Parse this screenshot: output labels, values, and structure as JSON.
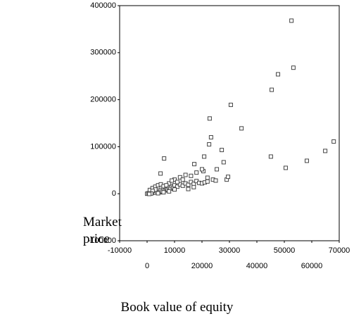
{
  "chart_data": {
    "type": "scatter",
    "x_label": "Book value of equity",
    "y_label": "Market price",
    "xlim": [
      -10000,
      70000
    ],
    "xticks": [
      -10000,
      0,
      10000,
      20000,
      30000,
      40000,
      50000,
      60000,
      70000
    ],
    "ylim": [
      -100000,
      400000
    ],
    "yticks": [
      -100000,
      0,
      100000,
      200000,
      300000,
      400000
    ],
    "color": "#444444",
    "x": [
      52600,
      53300,
      47700,
      45400,
      30500,
      34400,
      68000,
      64900,
      58200,
      45100,
      50500,
      22800,
      23300,
      22600,
      20800,
      27200,
      27900,
      25400,
      6200,
      4900,
      17200,
      20500,
      29000,
      29500,
      0,
      500,
      1000,
      1500,
      2000,
      2500,
      3000,
      3500,
      4000,
      4500,
      5000,
      5500,
      6000,
      6500,
      7000,
      7500,
      8000,
      8500,
      9000,
      9500,
      10000,
      11000,
      12000,
      13000,
      14000,
      15000,
      16000,
      17000,
      18000,
      19000,
      20000,
      21000,
      22000,
      1000,
      2000,
      3000,
      4000,
      5000,
      6000,
      8000,
      10000,
      12000,
      14000,
      16000,
      18000,
      20000,
      13000,
      11000,
      9000,
      7000,
      3000,
      2000,
      1500,
      800,
      4000,
      6000,
      8000,
      10000,
      22000,
      24000,
      25000,
      15000,
      17000
    ],
    "values": [
      368000,
      268000,
      254000,
      221000,
      189000,
      139000,
      111000,
      91000,
      70000,
      79000,
      55000,
      160000,
      120000,
      105000,
      79000,
      93000,
      67000,
      52000,
      75000,
      43000,
      63000,
      48000,
      30000,
      36000,
      0,
      1000,
      2000,
      1500,
      3000,
      4000,
      2000,
      5000,
      6000,
      3000,
      8000,
      5000,
      10000,
      7000,
      12000,
      9000,
      14000,
      11000,
      16000,
      13000,
      18000,
      15000,
      20000,
      17000,
      22000,
      19000,
      25000,
      21000,
      27000,
      23000,
      22000,
      24000,
      26000,
      8000,
      12000,
      15000,
      18000,
      20000,
      16000,
      22000,
      30000,
      35000,
      40000,
      38000,
      45000,
      52000,
      30000,
      25000,
      28000,
      18000,
      9000,
      6000,
      500,
      -500,
      1000,
      3000,
      5000,
      9000,
      34000,
      30000,
      28000,
      10000,
      14000
    ]
  }
}
